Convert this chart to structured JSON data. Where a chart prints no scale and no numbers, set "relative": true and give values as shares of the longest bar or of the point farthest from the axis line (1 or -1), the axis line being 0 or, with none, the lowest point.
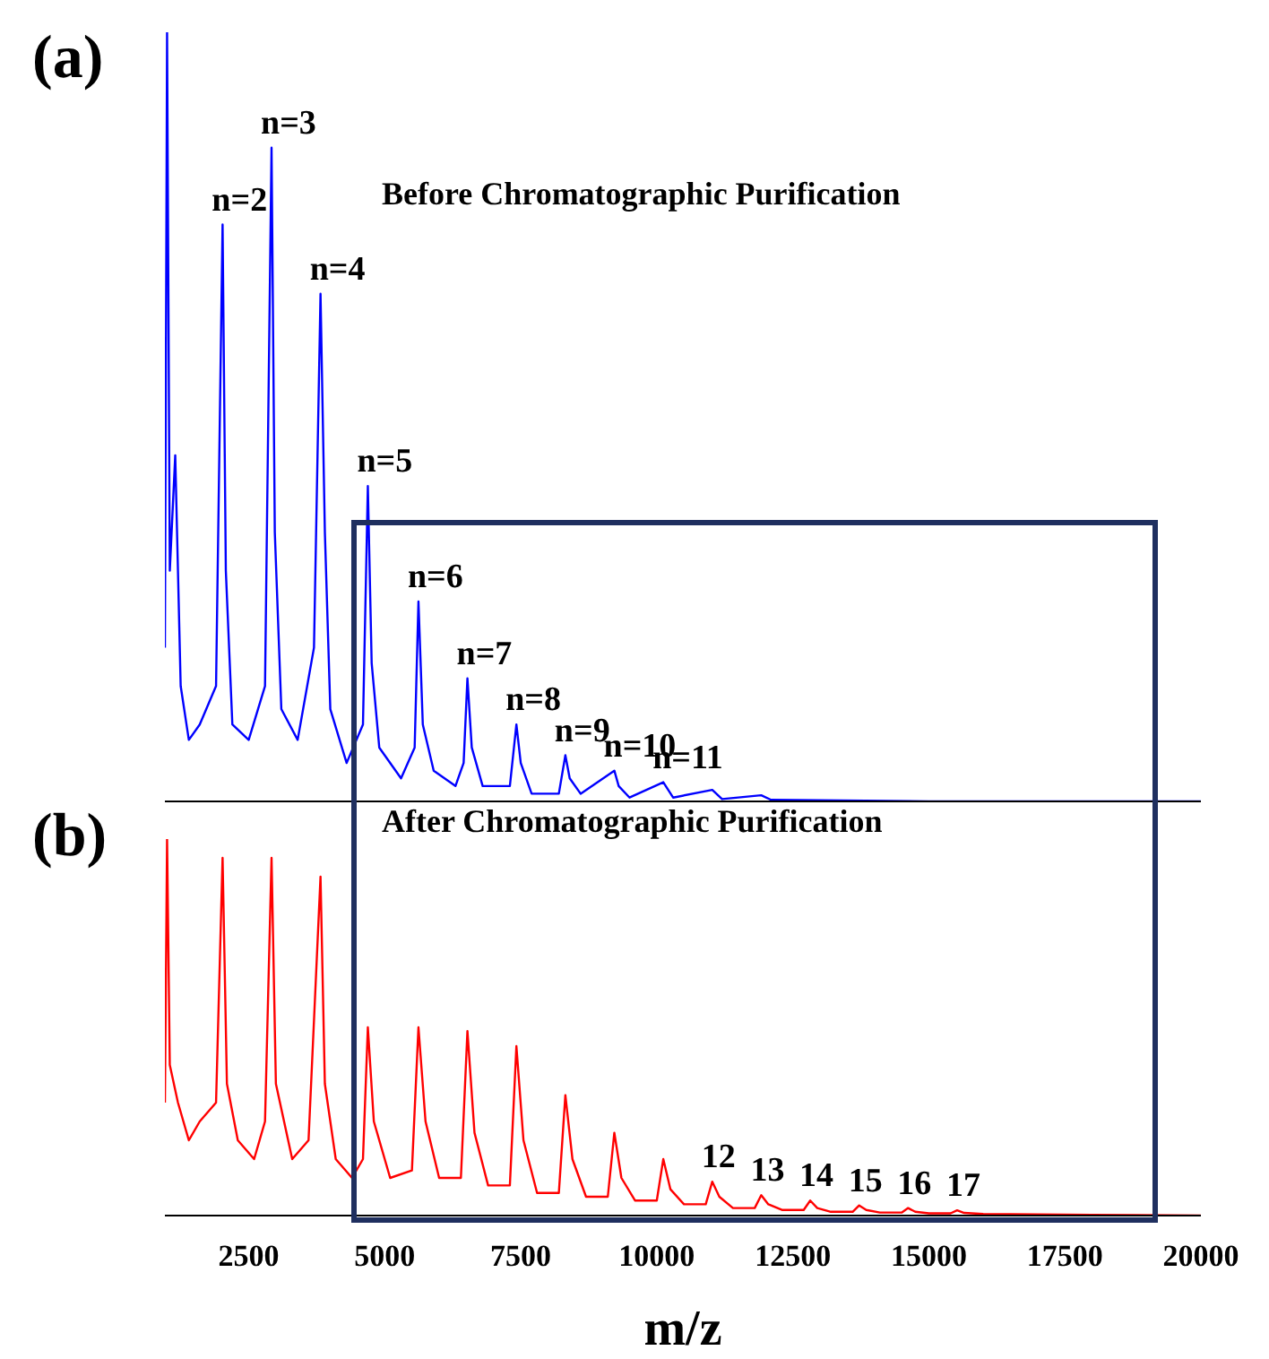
{
  "chart_data": [
    {
      "type": "line",
      "title": "(a)",
      "subtitle": "Before Chromatographic Purification",
      "relative": true,
      "tick_labels": false,
      "xlim": [
        960,
        20000
      ],
      "x": [
        960,
        1000,
        1050,
        1150,
        1250,
        1400,
        1600,
        1900,
        2020,
        2080,
        2200,
        2500,
        2800,
        2920,
        2980,
        3100,
        3400,
        3700,
        3820,
        3900,
        4000,
        4300,
        4600,
        4690,
        4760,
        4900,
        5300,
        5550,
        5620,
        5700,
        5900,
        6300,
        6450,
        6520,
        6600,
        6800,
        7300,
        7420,
        7500,
        7700,
        8200,
        8320,
        8400,
        8600,
        9220,
        9300,
        9500,
        10120,
        10300,
        11020,
        11200,
        11920,
        12100,
        15000,
        20000
      ],
      "series": [
        {
          "color": "#0000ff",
          "values": [
            0.2,
            1.0,
            0.3,
            0.45,
            0.15,
            0.08,
            0.1,
            0.15,
            0.75,
            0.3,
            0.1,
            0.08,
            0.15,
            0.85,
            0.35,
            0.12,
            0.08,
            0.2,
            0.66,
            0.35,
            0.12,
            0.05,
            0.1,
            0.41,
            0.18,
            0.07,
            0.03,
            0.07,
            0.26,
            0.1,
            0.04,
            0.02,
            0.05,
            0.16,
            0.07,
            0.02,
            0.02,
            0.1,
            0.05,
            0.01,
            0.01,
            0.06,
            0.03,
            0.01,
            0.04,
            0.02,
            0.005,
            0.025,
            0.005,
            0.015,
            0.003,
            0.008,
            0.002,
            0,
            0
          ]
        }
      ],
      "annotations": [
        {
          "text": "n=2",
          "x": 2020,
          "y": 0.75
        },
        {
          "text": "n=3",
          "x": 2920,
          "y": 0.85
        },
        {
          "text": "n=4",
          "x": 3820,
          "y": 0.66
        },
        {
          "text": "n=5",
          "x": 4690,
          "y": 0.41
        },
        {
          "text": "n=6",
          "x": 5620,
          "y": 0.26
        },
        {
          "text": "n=7",
          "x": 6520,
          "y": 0.16
        },
        {
          "text": "n=8",
          "x": 7420,
          "y": 0.1
        },
        {
          "text": "n=9",
          "x": 8320,
          "y": 0.06
        },
        {
          "text": "n=10",
          "x": 9220,
          "y": 0.04
        },
        {
          "text": "n=11",
          "x": 10120,
          "y": 0.025
        }
      ]
    },
    {
      "type": "line",
      "title": "(b)",
      "subtitle": "After Chromatographic Purification",
      "relative": true,
      "tick_labels": "x",
      "xlabel": "m/z",
      "xlim": [
        960,
        20000
      ],
      "xticks": [
        2500,
        5000,
        7500,
        10000,
        12500,
        15000,
        17500,
        20000
      ],
      "x": [
        960,
        1000,
        1050,
        1200,
        1400,
        1600,
        1900,
        2020,
        2100,
        2300,
        2600,
        2800,
        2920,
        3000,
        3300,
        3600,
        3820,
        3900,
        4100,
        4400,
        4600,
        4690,
        4800,
        5100,
        5500,
        5620,
        5750,
        6000,
        6400,
        6520,
        6650,
        6900,
        7300,
        7420,
        7550,
        7800,
        8200,
        8320,
        8450,
        8700,
        9100,
        9220,
        9350,
        9600,
        10000,
        10120,
        10250,
        10500,
        10900,
        11020,
        11150,
        11400,
        11800,
        11920,
        12050,
        12300,
        12700,
        12820,
        12950,
        13200,
        13600,
        13720,
        13850,
        14100,
        14500,
        14620,
        14750,
        15000,
        15400,
        15520,
        15650,
        16000,
        18000,
        20000
      ],
      "series": [
        {
          "color": "#ff0000",
          "values": [
            0.3,
            1.0,
            0.4,
            0.3,
            0.2,
            0.25,
            0.3,
            0.95,
            0.35,
            0.2,
            0.15,
            0.25,
            0.95,
            0.35,
            0.15,
            0.2,
            0.9,
            0.35,
            0.15,
            0.1,
            0.15,
            0.5,
            0.25,
            0.1,
            0.12,
            0.5,
            0.25,
            0.1,
            0.1,
            0.49,
            0.22,
            0.08,
            0.08,
            0.45,
            0.2,
            0.06,
            0.06,
            0.32,
            0.15,
            0.05,
            0.05,
            0.22,
            0.1,
            0.04,
            0.04,
            0.15,
            0.07,
            0.03,
            0.03,
            0.09,
            0.05,
            0.02,
            0.02,
            0.054,
            0.03,
            0.015,
            0.015,
            0.04,
            0.02,
            0.01,
            0.01,
            0.027,
            0.015,
            0.008,
            0.008,
            0.02,
            0.01,
            0.006,
            0.006,
            0.014,
            0.007,
            0.004,
            0.002,
            0
          ]
        }
      ],
      "annotations": [
        {
          "text": "12",
          "x": 11020,
          "y": 0.09
        },
        {
          "text": "13",
          "x": 11920,
          "y": 0.054
        },
        {
          "text": "14",
          "x": 12820,
          "y": 0.04
        },
        {
          "text": "15",
          "x": 13720,
          "y": 0.027
        },
        {
          "text": "16",
          "x": 14620,
          "y": 0.02
        },
        {
          "text": "17",
          "x": 15520,
          "y": 0.014
        }
      ]
    }
  ]
}
